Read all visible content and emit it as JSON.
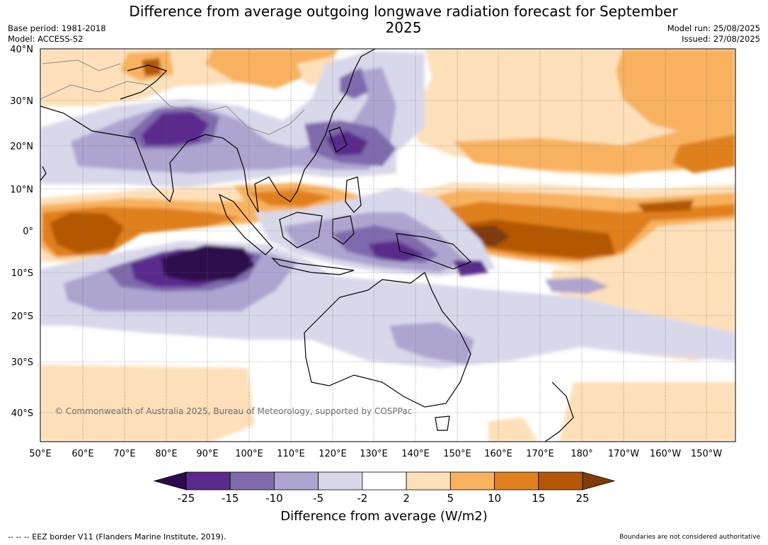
{
  "title": "Difference from average outgoing longwave radiation forecast for September 2025",
  "meta_left": [
    "Base period: 1981-2018",
    "Model: ACCESS-S2"
  ],
  "meta_right": [
    "Model run: 25/08/2025",
    "Issued: 27/08/2025"
  ],
  "copyright": "© Commonwealth of Australia 2025, Bureau of Meteorology, supported by COSPPac",
  "lat_labels": [
    "40°N",
    "30°N",
    "20°N",
    "10°N",
    "0°",
    "10°S",
    "20°S",
    "30°S",
    "40°S"
  ],
  "lon_labels": [
    "50°E",
    "60°E",
    "70°E",
    "80°E",
    "90°E",
    "100°E",
    "110°E",
    "120°E",
    "130°E",
    "140°E",
    "150°E",
    "160°E",
    "170°E",
    "180°",
    "170°W",
    "160°W",
    "150°W"
  ],
  "colorbar": {
    "title": "Difference from average (W/m2)",
    "ticks": [
      "-25",
      "-15",
      "-10",
      "-5",
      "-2",
      "2",
      "5",
      "10",
      "15",
      "25"
    ],
    "colors": [
      "#2d0a4e",
      "#5a2b8c",
      "#7f6aad",
      "#ada5cf",
      "#d9d8ea",
      "#ffffff",
      "#fde0b9",
      "#f8b25f",
      "#e0801e",
      "#b35806",
      "#7f3b08"
    ]
  },
  "footer_left": "--  --  -- EEZ border V11 (Flanders Marine Institute, 2019).",
  "footer_right": "Boundaries are not considered authoritative"
}
